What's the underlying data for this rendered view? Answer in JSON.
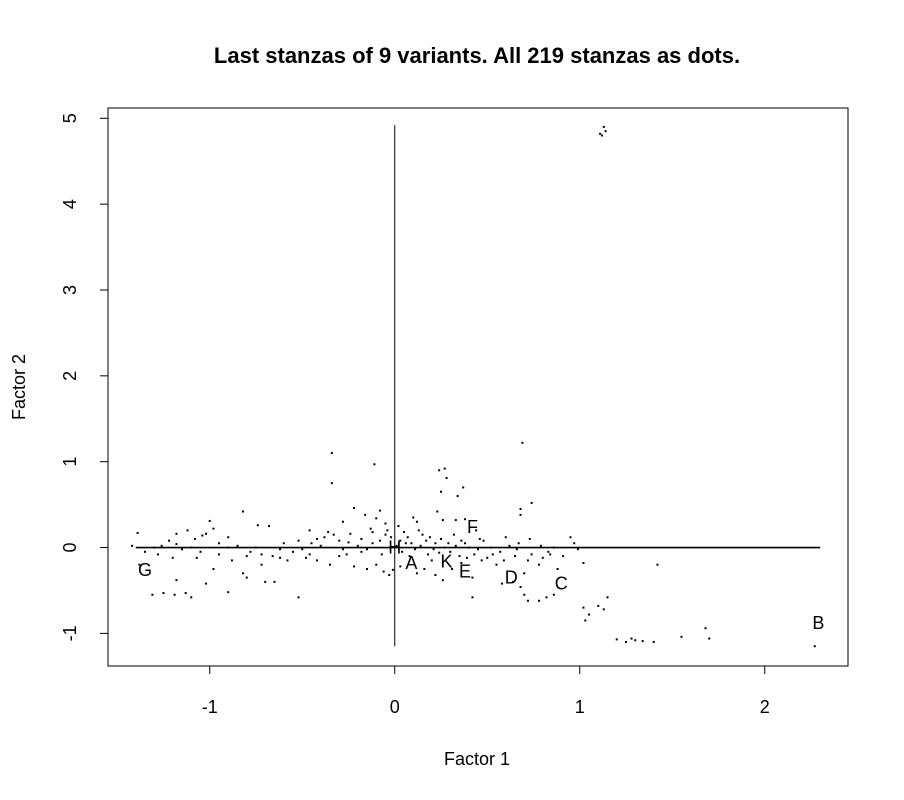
{
  "chart_data": {
    "type": "scatter",
    "title": "Last stanzas of 9 variants. All 219 stanzas as dots.",
    "xlabel": "Factor 1",
    "ylabel": "Factor 2",
    "xlim": [
      -1.55,
      2.45
    ],
    "ylim": [
      -1.38,
      5.12
    ],
    "xticks": [
      -1,
      0,
      1,
      2
    ],
    "yticks": [
      -1,
      0,
      1,
      2,
      3,
      4,
      5
    ],
    "grid": false,
    "reference_lines": {
      "horizontal": {
        "y": 0,
        "x_from": -1.4,
        "x_to": 2.3
      },
      "vertical": {
        "x": 0,
        "y_from": -1.15,
        "y_to": 4.92
      }
    },
    "variants": [
      {
        "label": "A",
        "x": 0.09,
        "y": -0.18
      },
      {
        "label": "B",
        "x": 2.29,
        "y": -0.88
      },
      {
        "label": "C",
        "x": 0.9,
        "y": -0.42
      },
      {
        "label": "D",
        "x": 0.63,
        "y": -0.35
      },
      {
        "label": "E",
        "x": 0.38,
        "y": -0.28
      },
      {
        "label": "F",
        "x": 0.42,
        "y": 0.24
      },
      {
        "label": "G",
        "x": -1.35,
        "y": -0.26
      },
      {
        "label": "H",
        "x": 0.0,
        "y": 0.0
      },
      {
        "label": "K",
        "x": 0.28,
        "y": -0.16
      }
    ],
    "dots": [
      [
        1.12,
        4.8
      ],
      [
        1.14,
        4.85
      ],
      [
        1.13,
        4.9
      ],
      [
        1.11,
        4.82
      ],
      [
        -0.34,
        1.1
      ],
      [
        -0.11,
        0.97
      ],
      [
        0.69,
        1.22
      ],
      [
        -0.34,
        0.75
      ],
      [
        0.24,
        0.9
      ],
      [
        0.27,
        0.92
      ],
      [
        0.28,
        0.81
      ],
      [
        0.25,
        0.65
      ],
      [
        0.37,
        0.7
      ],
      [
        0.34,
        0.6
      ],
      [
        0.74,
        0.52
      ],
      [
        0.68,
        0.45
      ],
      [
        0.68,
        0.38
      ],
      [
        0.23,
        0.42
      ],
      [
        0.26,
        0.32
      ],
      [
        0.33,
        0.32
      ],
      [
        0.38,
        0.33
      ],
      [
        0.44,
        0.2
      ],
      [
        -0.08,
        0.43
      ],
      [
        -0.22,
        0.46
      ],
      [
        -0.16,
        0.38
      ],
      [
        -0.28,
        0.3
      ],
      [
        -0.1,
        0.34
      ],
      [
        -0.05,
        0.28
      ],
      [
        -0.13,
        0.22
      ],
      [
        -0.24,
        0.16
      ],
      [
        -0.82,
        0.42
      ],
      [
        -1.0,
        0.31
      ],
      [
        -0.98,
        0.22
      ],
      [
        -0.68,
        0.25
      ],
      [
        -0.74,
        0.26
      ],
      [
        -1.12,
        0.2
      ],
      [
        -1.04,
        0.14
      ],
      [
        -1.02,
        0.16
      ],
      [
        -1.18,
        0.16
      ],
      [
        -1.39,
        0.17
      ],
      [
        -1.22,
        0.08
      ],
      [
        -1.26,
        0.02
      ],
      [
        -1.3,
        0.0
      ],
      [
        -1.18,
        0.04
      ],
      [
        -1.1,
        0.0
      ],
      [
        -1.15,
        -0.02
      ],
      [
        -1.08,
        0.1
      ],
      [
        -0.95,
        0.05
      ],
      [
        -0.9,
        0.0
      ],
      [
        -0.85,
        0.02
      ],
      [
        -0.78,
        -0.05
      ],
      [
        -0.72,
        -0.08
      ],
      [
        -0.66,
        -0.1
      ],
      [
        -0.62,
        -0.12
      ],
      [
        -0.55,
        -0.05
      ],
      [
        -0.5,
        -0.02
      ],
      [
        -0.45,
        0.05
      ],
      [
        -0.42,
        0.1
      ],
      [
        -0.38,
        0.12
      ],
      [
        -0.33,
        0.15
      ],
      [
        -0.46,
        0.2
      ],
      [
        -0.3,
        0.08
      ],
      [
        -0.25,
        0.06
      ],
      [
        -0.2,
        0.02
      ],
      [
        -0.18,
        -0.05
      ],
      [
        -0.15,
        -0.02
      ],
      [
        -0.12,
        0.05
      ],
      [
        -0.08,
        0.08
      ],
      [
        -0.04,
        0.2
      ],
      [
        -0.02,
        0.12
      ],
      [
        0.02,
        0.25
      ],
      [
        0.05,
        0.18
      ],
      [
        0.07,
        0.12
      ],
      [
        0.06,
        0.05
      ],
      [
        0.04,
        -0.05
      ],
      [
        0.08,
        -0.1
      ],
      [
        0.1,
        0.35
      ],
      [
        0.12,
        0.3
      ],
      [
        0.15,
        0.15
      ],
      [
        0.14,
        0.02
      ],
      [
        0.18,
        -0.08
      ],
      [
        0.2,
        -0.15
      ],
      [
        0.22,
        0.05
      ],
      [
        0.25,
        0.1
      ],
      [
        0.27,
        0.0
      ],
      [
        0.3,
        -0.05
      ],
      [
        0.32,
        0.15
      ],
      [
        0.35,
        -0.1
      ],
      [
        0.38,
        0.05
      ],
      [
        0.4,
        0.0
      ],
      [
        0.43,
        -0.08
      ],
      [
        0.45,
        -0.02
      ],
      [
        0.48,
        0.08
      ],
      [
        0.5,
        -0.12
      ],
      [
        0.52,
        0.0
      ],
      [
        0.55,
        -0.2
      ],
      [
        0.57,
        -0.05
      ],
      [
        0.6,
        0.12
      ],
      [
        0.62,
        0.02
      ],
      [
        0.65,
        -0.1
      ],
      [
        0.67,
        0.05
      ],
      [
        0.7,
        -0.3
      ],
      [
        0.72,
        -0.15
      ],
      [
        0.74,
        -0.08
      ],
      [
        0.78,
        -0.2
      ],
      [
        0.8,
        -0.12
      ],
      [
        0.83,
        -0.05
      ],
      [
        0.86,
        0.0
      ],
      [
        0.88,
        -0.25
      ],
      [
        0.95,
        0.12
      ],
      [
        0.97,
        0.05
      ],
      [
        1.02,
        -0.18
      ],
      [
        0.7,
        -0.55
      ],
      [
        0.72,
        -0.62
      ],
      [
        0.78,
        -0.62
      ],
      [
        0.82,
        -0.58
      ],
      [
        0.86,
        -0.55
      ],
      [
        1.02,
        -0.7
      ],
      [
        1.03,
        -0.85
      ],
      [
        1.05,
        -0.78
      ],
      [
        1.1,
        -0.68
      ],
      [
        1.13,
        -0.72
      ],
      [
        1.15,
        -0.58
      ],
      [
        1.2,
        -1.07
      ],
      [
        1.25,
        -1.1
      ],
      [
        1.28,
        -1.06
      ],
      [
        1.3,
        -1.08
      ],
      [
        1.34,
        -1.09
      ],
      [
        1.4,
        -1.1
      ],
      [
        1.55,
        -1.04
      ],
      [
        1.68,
        -0.94
      ],
      [
        1.7,
        -1.06
      ],
      [
        2.27,
        -1.15
      ],
      [
        1.42,
        -0.2
      ],
      [
        -1.38,
        -0.2
      ],
      [
        -1.31,
        -0.55
      ],
      [
        -1.25,
        -0.53
      ],
      [
        -1.19,
        -0.55
      ],
      [
        -1.13,
        -0.53
      ],
      [
        -1.1,
        -0.58
      ],
      [
        -1.18,
        -0.38
      ],
      [
        -1.02,
        -0.42
      ],
      [
        -0.98,
        -0.25
      ],
      [
        -0.9,
        -0.52
      ],
      [
        -0.82,
        -0.3
      ],
      [
        -0.8,
        -0.35
      ],
      [
        -0.72,
        -0.2
      ],
      [
        -0.7,
        -0.4
      ],
      [
        -0.65,
        -0.4
      ],
      [
        -0.58,
        -0.15
      ],
      [
        -0.52,
        -0.58
      ],
      [
        -0.48,
        -0.12
      ],
      [
        -0.42,
        -0.15
      ],
      [
        -0.35,
        -0.2
      ],
      [
        -0.3,
        -0.1
      ],
      [
        -0.22,
        -0.22
      ],
      [
        -0.15,
        -0.25
      ],
      [
        -0.1,
        -0.2
      ],
      [
        -0.06,
        -0.28
      ],
      [
        -0.03,
        -0.32
      ],
      [
        -0.01,
        -0.26
      ],
      [
        0.03,
        -0.22
      ],
      [
        0.12,
        -0.3
      ],
      [
        0.16,
        -0.25
      ],
      [
        0.22,
        -0.32
      ],
      [
        0.26,
        -0.38
      ],
      [
        0.31,
        -0.25
      ],
      [
        0.36,
        -0.18
      ],
      [
        0.42,
        -0.35
      ],
      [
        0.42,
        -0.58
      ],
      [
        0.58,
        -0.42
      ],
      [
        0.64,
        -0.4
      ],
      [
        0.68,
        -0.46
      ],
      [
        -1.42,
        0.02
      ],
      [
        -1.35,
        -0.05
      ],
      [
        -1.28,
        -0.08
      ],
      [
        -1.2,
        -0.12
      ],
      [
        -1.05,
        -0.05
      ],
      [
        -0.95,
        -0.08
      ],
      [
        -0.88,
        -0.15
      ],
      [
        -0.8,
        -0.1
      ],
      [
        -0.75,
        0.0
      ],
      [
        -0.6,
        0.05
      ],
      [
        -0.52,
        0.08
      ],
      [
        -0.4,
        0.02
      ],
      [
        -0.28,
        -0.02
      ],
      [
        -0.18,
        0.1
      ],
      [
        -0.12,
        0.18
      ],
      [
        -0.05,
        0.15
      ],
      [
        0.01,
        0.02
      ],
      [
        0.03,
        0.08
      ],
      [
        0.09,
        0.05
      ],
      [
        0.11,
        -0.02
      ],
      [
        0.17,
        0.08
      ],
      [
        0.21,
        -0.02
      ],
      [
        0.24,
        -0.06
      ],
      [
        0.29,
        0.05
      ],
      [
        0.33,
        0.02
      ],
      [
        0.36,
        0.08
      ],
      [
        0.39,
        -0.12
      ],
      [
        0.46,
        0.1
      ],
      [
        0.53,
        -0.08
      ],
      [
        0.59,
        -0.15
      ],
      [
        0.66,
        -0.02
      ],
      [
        0.73,
        0.1
      ],
      [
        0.79,
        0.02
      ],
      [
        0.84,
        -0.08
      ],
      [
        0.91,
        -0.1
      ],
      [
        0.99,
        -0.02
      ],
      [
        -1.07,
        -0.12
      ],
      [
        -0.9,
        0.12
      ],
      [
        -0.62,
        -0.02
      ],
      [
        -0.46,
        -0.08
      ],
      [
        -0.36,
        0.18
      ],
      [
        -0.26,
        -0.08
      ],
      [
        -0.07,
        -0.08
      ],
      [
        0.13,
        0.2
      ],
      [
        0.19,
        0.12
      ],
      [
        0.47,
        -0.15
      ]
    ]
  }
}
